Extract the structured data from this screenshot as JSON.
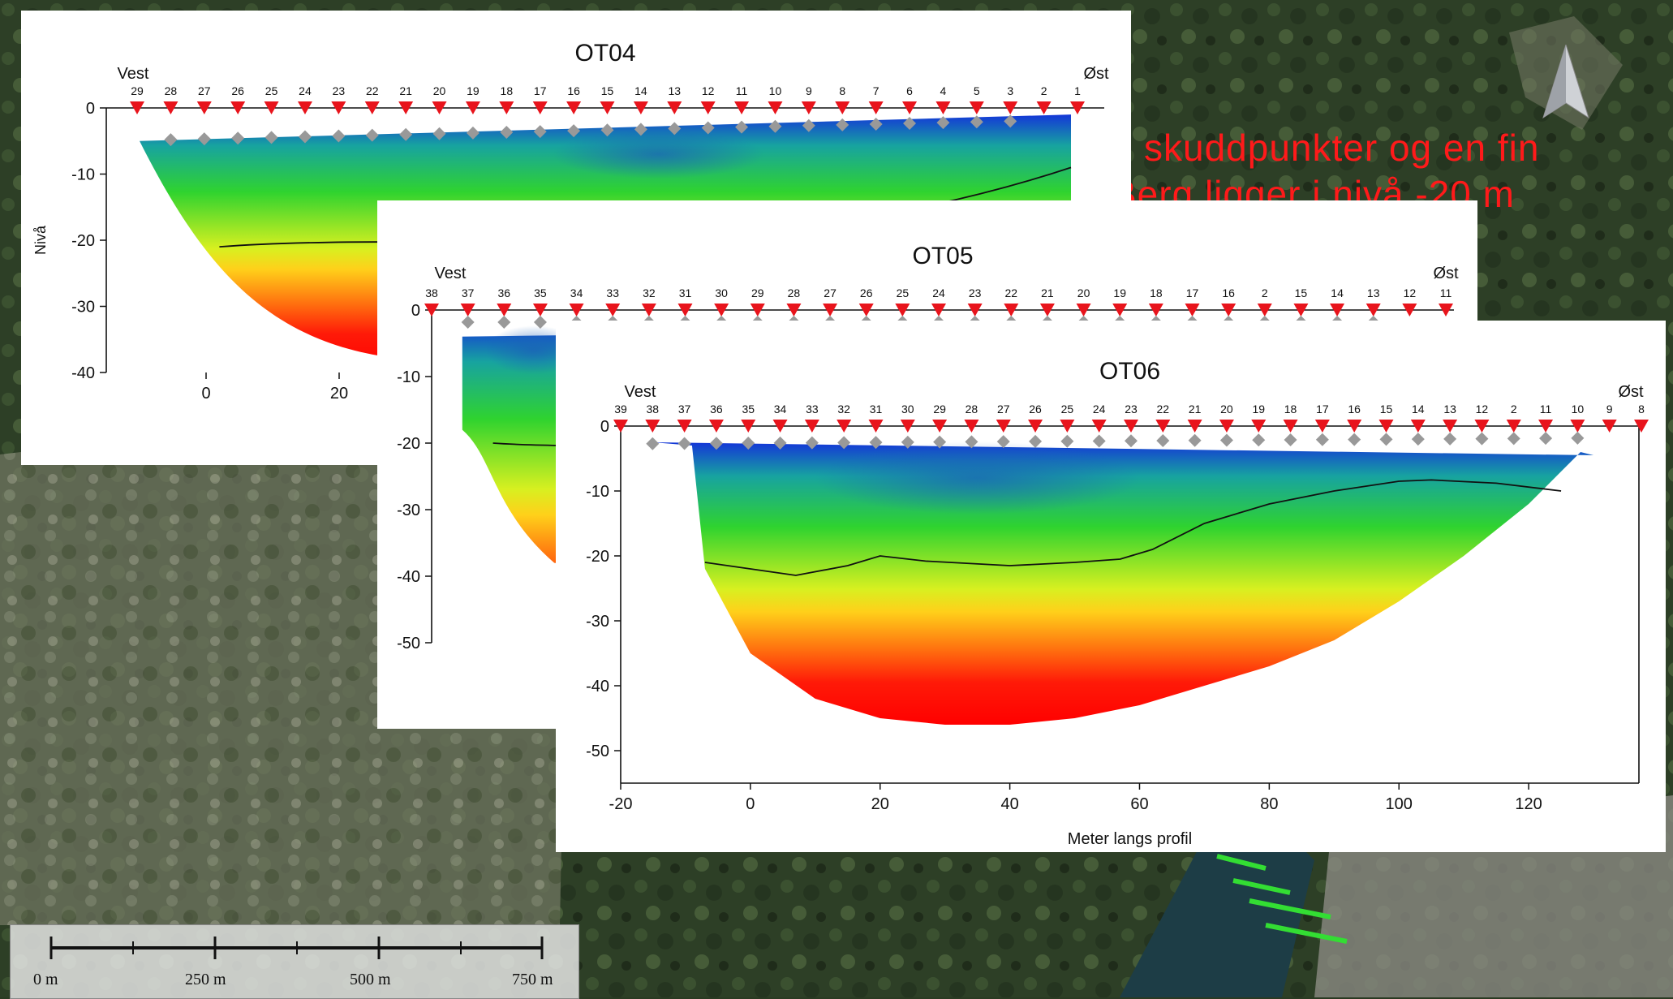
{
  "overlay_text": {
    "line1": "skuddpunkter og en fin",
    "line2": "Berg ligger i nivå -20 m"
  },
  "scalebar": {
    "labels": [
      "0 m",
      "250 m",
      "500 m",
      "750 m"
    ]
  },
  "colors": {
    "shot_marker": "#e8141c",
    "geophone_marker": "#999999",
    "overlay_text": "#ff1a1a",
    "velocity_low": "#0a2fd0",
    "velocity_high": "#ff0000"
  },
  "chart_data": [
    {
      "type": "heatmap",
      "title": "OT04",
      "left_label": "Vest",
      "right_label": "Øst",
      "ylabel": "Nivå",
      "xlim": [
        -15,
        135
      ],
      "ylim": [
        -40,
        0
      ],
      "xticks": [
        0,
        20
      ],
      "yticks": [
        0,
        -10,
        -20,
        -30,
        -40
      ],
      "shot_labels": [
        "29",
        "28",
        "27",
        "26",
        "25",
        "24",
        "23",
        "22",
        "21",
        "20",
        "19",
        "18",
        "17",
        "16",
        "15",
        "14",
        "13",
        "12",
        "11",
        "10",
        "9",
        "8",
        "7",
        "6",
        "4",
        "5",
        "3",
        "2",
        "1"
      ],
      "bedrock_depth_m": -20
    },
    {
      "type": "heatmap",
      "title": "OT05",
      "left_label": "Vest",
      "right_label": "Øst",
      "ylim": [
        -50,
        0
      ],
      "yticks": [
        0,
        -10,
        -20,
        -30,
        -40,
        -50
      ],
      "shot_labels": [
        "38",
        "37",
        "36",
        "35",
        "34",
        "33",
        "32",
        "31",
        "30",
        "29",
        "28",
        "27",
        "26",
        "25",
        "24",
        "23",
        "22",
        "21",
        "20",
        "19",
        "18",
        "17",
        "16",
        "2",
        "15",
        "14",
        "13",
        "12",
        "11"
      ]
    },
    {
      "type": "heatmap",
      "title": "OT06",
      "left_label": "Vest",
      "right_label": "Øst",
      "xlabel": "Meter langs profil",
      "xlim": [
        -20,
        137
      ],
      "ylim": [
        -55,
        0
      ],
      "xticks": [
        -20,
        0,
        20,
        40,
        60,
        80,
        100,
        120
      ],
      "yticks": [
        0,
        -10,
        -20,
        -30,
        -40,
        -50
      ],
      "shot_labels": [
        "39",
        "38",
        "37",
        "36",
        "35",
        "34",
        "33",
        "32",
        "31",
        "30",
        "29",
        "28",
        "27",
        "26",
        "25",
        "24",
        "23",
        "22",
        "21",
        "20",
        "19",
        "18",
        "17",
        "16",
        "15",
        "14",
        "13",
        "12",
        "2",
        "11",
        "10",
        "9",
        "8"
      ],
      "interface_line": {
        "x": [
          -7,
          0,
          7,
          15,
          20,
          27,
          40,
          50,
          57,
          62,
          70,
          80,
          90,
          100,
          105,
          115,
          125
        ],
        "y": [
          -21,
          -22,
          -23,
          -21.5,
          -20,
          -20.8,
          -21.5,
          -21,
          -20.5,
          -19,
          -15,
          -12,
          -10,
          -8.5,
          -8.3,
          -8.8,
          -10
        ]
      },
      "bedrock_bottom": {
        "x": [
          -7,
          0,
          10,
          20,
          30,
          40,
          50,
          60,
          70,
          80,
          90,
          100,
          110,
          120,
          125,
          128
        ],
        "y": [
          -22,
          -35,
          -42,
          -45,
          -46,
          -46,
          -45,
          -43,
          -40,
          -37,
          -33,
          -27,
          -20,
          -12,
          -7,
          -4
        ]
      }
    }
  ]
}
